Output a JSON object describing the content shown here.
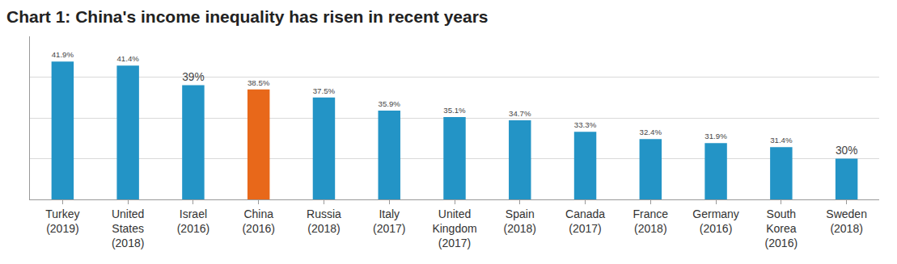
{
  "chart_data": {
    "type": "bar",
    "title": "Chart 1: China's income inequality has risen in recent years",
    "categories": [
      "Turkey (2019)",
      "United States (2018)",
      "Israel (2016)",
      "China (2016)",
      "Russia (2018)",
      "Italy (2017)",
      "United Kingdom (2017)",
      "Spain (2018)",
      "Canada (2017)",
      "France (2018)",
      "Germany (2016)",
      "South Korea (2016)",
      "Sweden (2018)"
    ],
    "values": [
      41.9,
      41.4,
      39,
      38.5,
      37.5,
      35.9,
      35.1,
      34.7,
      33.3,
      32.4,
      31.9,
      31.4,
      30
    ],
    "value_labels": [
      "41.9%",
      "41.4%",
      "39%",
      "38.5%",
      "37.5%",
      "35.9%",
      "35.1%",
      "34.7%",
      "33.3%",
      "32.4%",
      "31.9%",
      "31.4%",
      "30%"
    ],
    "colors": [
      "#2394c6",
      "#2394c6",
      "#2394c6",
      "#e8681a",
      "#2394c6",
      "#2394c6",
      "#2394c6",
      "#2394c6",
      "#2394c6",
      "#2394c6",
      "#2394c6",
      "#2394c6",
      "#2394c6"
    ],
    "ylim": [
      25,
      45
    ],
    "yticks": [
      25,
      30,
      35,
      40,
      45
    ],
    "grid": true,
    "data_labels": true,
    "tick_labels": "x"
  }
}
